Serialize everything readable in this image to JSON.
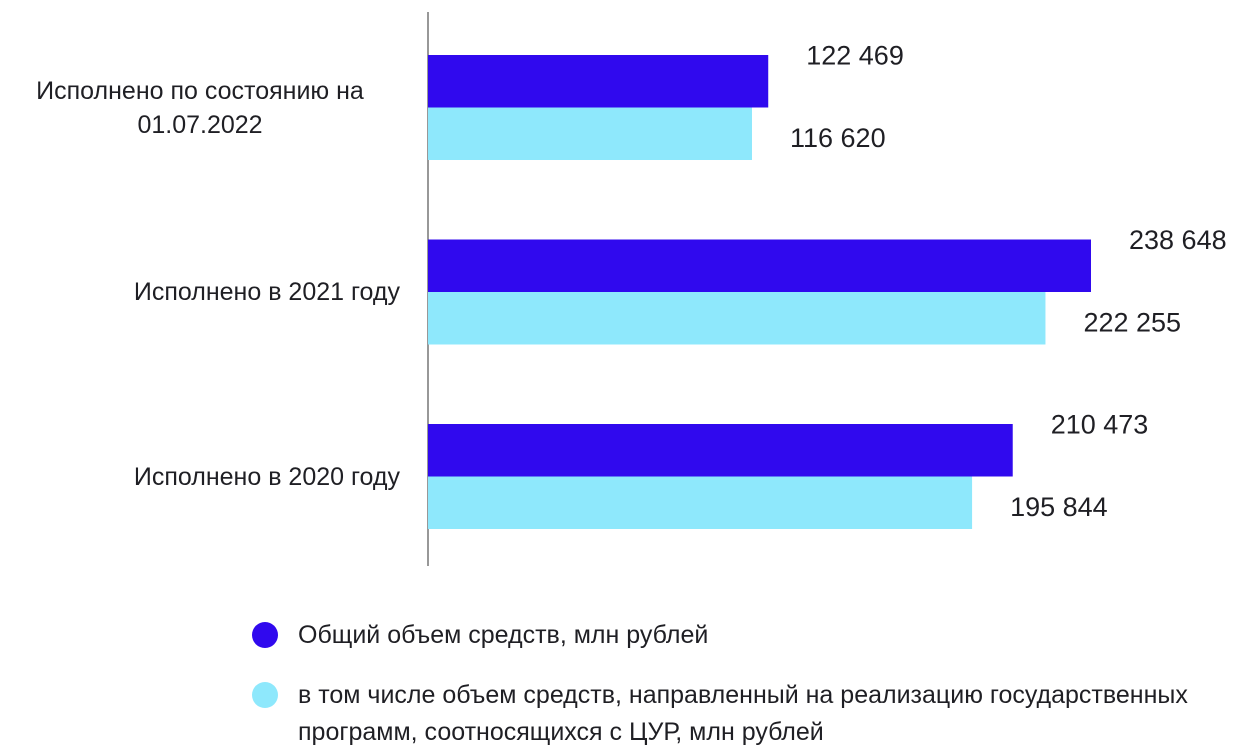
{
  "chart_data": {
    "type": "barh",
    "categories": [
      "Исполнено по состоянию на 01.07.2022",
      "Исполнено в 2021 году",
      "Исполнено в 2020 году"
    ],
    "series": [
      {
        "name": "Общий объем средств, млн рублей",
        "color": "#3009ee",
        "values": [
          122469,
          238648,
          210473
        ],
        "value_labels": [
          "122 469",
          "238 648",
          "210 473"
        ]
      },
      {
        "name": "в том числе объем средств, направленный на реализацию государственных программ, соотносящихся с ЦУР, млн рублей",
        "color": "#8ee8fc",
        "values": [
          116620,
          222255,
          195844
        ],
        "value_labels": [
          "116 620",
          "222 255",
          "195 844"
        ]
      }
    ],
    "legend": "bottom"
  }
}
